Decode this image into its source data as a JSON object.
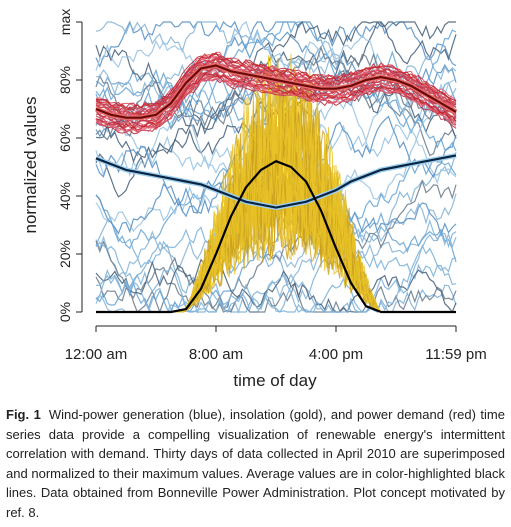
{
  "chart_data": {
    "type": "line",
    "title": "",
    "xlabel": "time of day",
    "ylabel": "normalized values",
    "x_ticks": [
      "12:00 am",
      "8:00 am",
      "4:00 pm",
      "11:59 pm"
    ],
    "x_tick_hours": [
      0,
      8,
      16,
      24
    ],
    "y_ticks": [
      "0%",
      "20%",
      "40%",
      "60%",
      "80%",
      "max"
    ],
    "y_tick_values": [
      0,
      0.2,
      0.4,
      0.6,
      0.8,
      1.0
    ],
    "xlim": [
      0,
      24
    ],
    "ylim": [
      0,
      1
    ],
    "days": 30,
    "series": [
      {
        "name": "",
        "role": "power demand",
        "color": "#cc2a2a",
        "average_color": "#6b0a0a",
        "average": {
          "x": [
            0,
            1,
            2,
            3,
            4,
            5,
            6,
            7,
            8,
            9,
            10,
            11,
            12,
            13,
            14,
            15,
            16,
            17,
            18,
            19,
            20,
            21,
            22,
            23,
            24
          ],
          "y": [
            0.7,
            0.68,
            0.67,
            0.67,
            0.68,
            0.72,
            0.79,
            0.84,
            0.85,
            0.83,
            0.82,
            0.81,
            0.8,
            0.79,
            0.78,
            0.77,
            0.77,
            0.78,
            0.8,
            0.81,
            0.8,
            0.78,
            0.75,
            0.72,
            0.69
          ]
        }
      },
      {
        "name": "",
        "role": "wind-power generation",
        "color": "#7fb3d9",
        "average_color": "#0b2540",
        "average": {
          "x": [
            0,
            1,
            2,
            3,
            4,
            5,
            6,
            7,
            8,
            9,
            10,
            11,
            12,
            13,
            14,
            15,
            16,
            17,
            18,
            19,
            20,
            21,
            22,
            23,
            24
          ],
          "y": [
            0.53,
            0.51,
            0.49,
            0.48,
            0.47,
            0.46,
            0.45,
            0.44,
            0.42,
            0.4,
            0.38,
            0.37,
            0.36,
            0.37,
            0.38,
            0.4,
            0.42,
            0.45,
            0.47,
            0.49,
            0.5,
            0.51,
            0.52,
            0.53,
            0.54
          ]
        }
      },
      {
        "name": "",
        "role": "insolation",
        "color": "#e8c227",
        "average_color": "#000000",
        "average": {
          "x": [
            0,
            5,
            6,
            7,
            8,
            9,
            10,
            11,
            12,
            13,
            14,
            15,
            16,
            17,
            18,
            19,
            24
          ],
          "y": [
            0,
            0,
            0.01,
            0.08,
            0.2,
            0.33,
            0.43,
            0.49,
            0.52,
            0.5,
            0.45,
            0.35,
            0.22,
            0.1,
            0.02,
            0,
            0
          ]
        }
      }
    ]
  },
  "caption": {
    "label": "Fig. 1",
    "text": "Wind-power generation (blue), insolation (gold), and power demand (red) time series data provide a compelling visualization of renewable energy's intermittent correlation with demand. Thirty days of data collected in April 2010 are superimposed and normalized to their maximum values. Average values are in color-highlighted black lines. Data obtained from Bonneville Power Administration. Plot concept motivated by ref. 8."
  }
}
